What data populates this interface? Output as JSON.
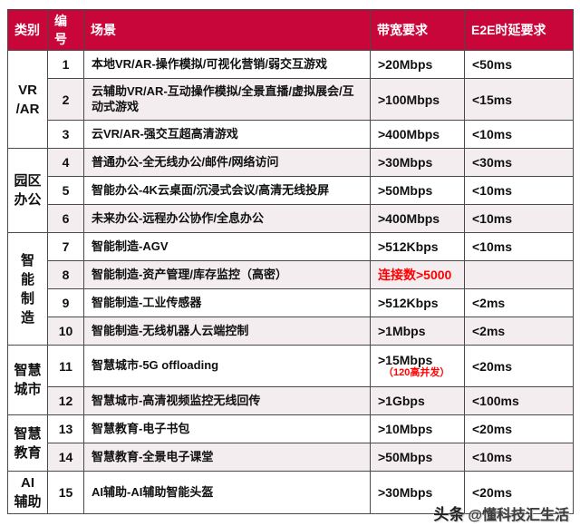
{
  "colors": {
    "header_bg": "#c9063a",
    "alert_red": "#ff0000",
    "grid": "#4a4a4a",
    "alt_row": "#f4edf0",
    "watermark": "#3c3c3c"
  },
  "category_labels": [
    {
      "text": "VR\n/AR",
      "span": 3
    },
    {
      "text": "园区\n办公",
      "span": 3
    },
    {
      "text": "智\n能\n制\n造",
      "span": 4
    },
    {
      "text": "智慧\n城市",
      "span": 2
    },
    {
      "text": "智慧\n教育",
      "span": 2
    },
    {
      "text": "AI\n辅助",
      "span": 1
    }
  ],
  "chart_data": {
    "type": "table",
    "columns": [
      "类别",
      "编号",
      "场景",
      "带宽要求",
      "E2E时延要求"
    ],
    "rows": [
      {
        "category": "VR/AR",
        "no": "1",
        "scene": "本地VR/AR-操作模拟/可视化营销/弱交互游戏",
        "bandwidth": ">20Mbps",
        "latency": "<50ms"
      },
      {
        "category": "VR/AR",
        "no": "2",
        "scene": "云辅助VR/AR-互动操作模拟/全景直播/虚拟展会/互动式游戏",
        "bandwidth": ">100Mbps",
        "latency": "<15ms"
      },
      {
        "category": "VR/AR",
        "no": "3",
        "scene": "云VR/AR-强交互超高清游戏",
        "bandwidth": ">400Mbps",
        "latency": "<10ms"
      },
      {
        "category": "园区办公",
        "no": "4",
        "scene": "普通办公-全无线办公/邮件/网络访问",
        "bandwidth": ">30Mbps",
        "latency": "<30ms"
      },
      {
        "category": "园区办公",
        "no": "5",
        "scene": "智能办公-4K云桌面/沉浸式会议/高清无线投屏",
        "bandwidth": ">50Mbps",
        "latency": "<10ms"
      },
      {
        "category": "园区办公",
        "no": "6",
        "scene": "未来办公-远程办公协作/全息办公",
        "bandwidth": ">400Mbps",
        "latency": "<10ms"
      },
      {
        "category": "智能制造",
        "no": "7",
        "scene": "智能制造-AGV",
        "bandwidth": ">512Kbps",
        "latency": "<10ms"
      },
      {
        "category": "智能制造",
        "no": "8",
        "scene": "智能制造-资产管理/库存监控（高密）",
        "bandwidth": "连接数>5000",
        "latency": ""
      },
      {
        "category": "智能制造",
        "no": "9",
        "scene": "智能制造-工业传感器",
        "bandwidth": ">512Kbps",
        "latency": "<2ms"
      },
      {
        "category": "智能制造",
        "no": "10",
        "scene": "智能制造-无线机器人云端控制",
        "bandwidth": ">1Mbps",
        "latency": "<2ms"
      },
      {
        "category": "智慧城市",
        "no": "11",
        "scene": "智慧城市-5G offloading",
        "bandwidth": ">15Mbps",
        "bandwidth_note": "（120高并发）",
        "latency": "<20ms"
      },
      {
        "category": "智慧城市",
        "no": "12",
        "scene": "智慧城市-高清视频监控无线回传",
        "bandwidth": ">1Gbps",
        "latency": "<100ms"
      },
      {
        "category": "智慧教育",
        "no": "13",
        "scene": "智慧教育-电子书包",
        "bandwidth": ">10Mbps",
        "latency": "<20ms"
      },
      {
        "category": "智慧教育",
        "no": "14",
        "scene": "智慧教育-全景电子课堂",
        "bandwidth": ">50Mbps",
        "latency": "<10ms"
      },
      {
        "category": "AI辅助",
        "no": "15",
        "scene": "AI辅助-AI辅助智能头盔",
        "bandwidth": ">30Mbps",
        "latency": "<20ms"
      }
    ]
  },
  "watermark": {
    "brand": "头条",
    "handle": "@懂科技汇生活"
  }
}
